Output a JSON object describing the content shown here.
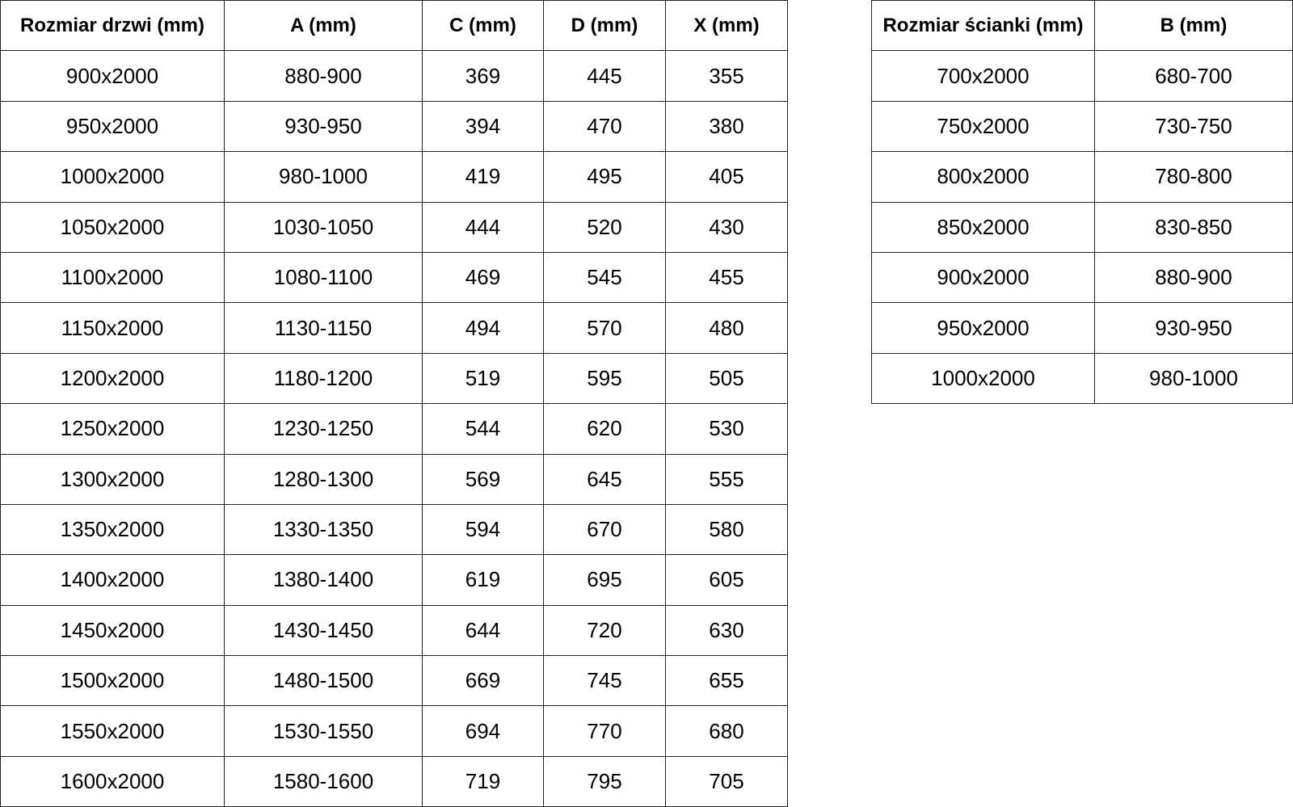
{
  "doors_table": {
    "headers": [
      "Rozmiar drzwi (mm)",
      "A (mm)",
      "C (mm)",
      "D (mm)",
      "X (mm)"
    ],
    "rows": [
      [
        "900x2000",
        "880-900",
        "369",
        "445",
        "355"
      ],
      [
        "950x2000",
        "930-950",
        "394",
        "470",
        "380"
      ],
      [
        "1000x2000",
        "980-1000",
        "419",
        "495",
        "405"
      ],
      [
        "1050x2000",
        "1030-1050",
        "444",
        "520",
        "430"
      ],
      [
        "1100x2000",
        "1080-1100",
        "469",
        "545",
        "455"
      ],
      [
        "1150x2000",
        "1130-1150",
        "494",
        "570",
        "480"
      ],
      [
        "1200x2000",
        "1180-1200",
        "519",
        "595",
        "505"
      ],
      [
        "1250x2000",
        "1230-1250",
        "544",
        "620",
        "530"
      ],
      [
        "1300x2000",
        "1280-1300",
        "569",
        "645",
        "555"
      ],
      [
        "1350x2000",
        "1330-1350",
        "594",
        "670",
        "580"
      ],
      [
        "1400x2000",
        "1380-1400",
        "619",
        "695",
        "605"
      ],
      [
        "1450x2000",
        "1430-1450",
        "644",
        "720",
        "630"
      ],
      [
        "1500x2000",
        "1480-1500",
        "669",
        "745",
        "655"
      ],
      [
        "1550x2000",
        "1530-1550",
        "694",
        "770",
        "680"
      ],
      [
        "1600x2000",
        "1580-1600",
        "719",
        "795",
        "705"
      ]
    ]
  },
  "wall_table": {
    "headers": [
      "Rozmiar ścianki (mm)",
      "B (mm)"
    ],
    "rows": [
      [
        "700x2000",
        "680-700"
      ],
      [
        "750x2000",
        "730-750"
      ],
      [
        "800x2000",
        "780-800"
      ],
      [
        "850x2000",
        "830-850"
      ],
      [
        "900x2000",
        "880-900"
      ],
      [
        "950x2000",
        "930-950"
      ],
      [
        "1000x2000",
        "980-1000"
      ]
    ]
  }
}
